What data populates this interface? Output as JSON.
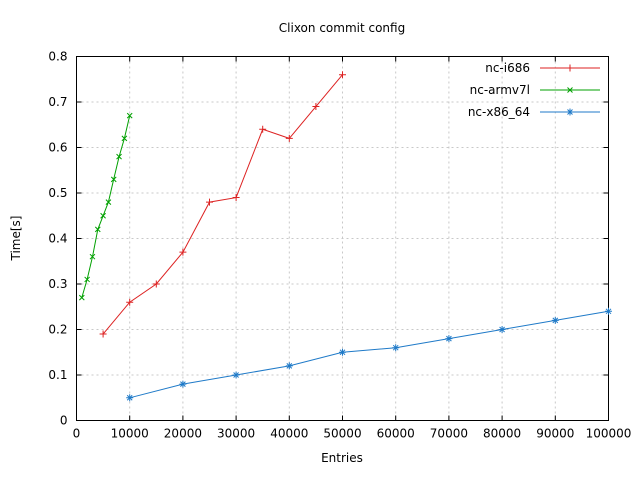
{
  "chart_data": {
    "type": "line",
    "title": "Clixon commit config",
    "xlabel": "Entries",
    "ylabel": "Time[s]",
    "xlim": [
      0,
      100000
    ],
    "ylim": [
      0,
      0.8
    ],
    "grid": true,
    "legend_position": "top-right",
    "x_ticks": [
      0,
      10000,
      20000,
      30000,
      40000,
      50000,
      60000,
      70000,
      80000,
      90000,
      100000
    ],
    "x_tick_labels": [
      "0",
      "10000",
      "20000",
      "30000",
      "40000",
      "50000",
      "60000",
      "70000",
      "80000",
      "90000",
      "100000"
    ],
    "y_ticks": [
      0,
      0.1,
      0.2,
      0.3,
      0.4,
      0.5,
      0.6,
      0.7,
      0.8
    ],
    "y_tick_labels": [
      "0",
      "0.1",
      "0.2",
      "0.3",
      "0.4",
      "0.5",
      "0.6",
      "0.7",
      "0.8"
    ],
    "series": [
      {
        "name": "nc-i686",
        "color": "#dd2222",
        "marker": "plus",
        "x": [
          5000,
          10000,
          15000,
          20000,
          25000,
          30000,
          35000,
          40000,
          45000,
          50000
        ],
        "y": [
          0.19,
          0.26,
          0.3,
          0.37,
          0.48,
          0.49,
          0.64,
          0.62,
          0.69,
          0.76
        ]
      },
      {
        "name": "nc-armv7l",
        "color": "#00a000",
        "marker": "cross",
        "x": [
          1000,
          2000,
          3000,
          4000,
          5000,
          6000,
          7000,
          8000,
          9000,
          10000
        ],
        "y": [
          0.27,
          0.31,
          0.36,
          0.42,
          0.45,
          0.48,
          0.53,
          0.58,
          0.62,
          0.67
        ]
      },
      {
        "name": "nc-x86_64",
        "color": "#1f7ac8",
        "marker": "asterisk",
        "x": [
          10000,
          20000,
          30000,
          40000,
          50000,
          60000,
          70000,
          80000,
          90000,
          100000
        ],
        "y": [
          0.05,
          0.08,
          0.1,
          0.12,
          0.15,
          0.16,
          0.18,
          0.2,
          0.22,
          0.24
        ]
      }
    ]
  }
}
